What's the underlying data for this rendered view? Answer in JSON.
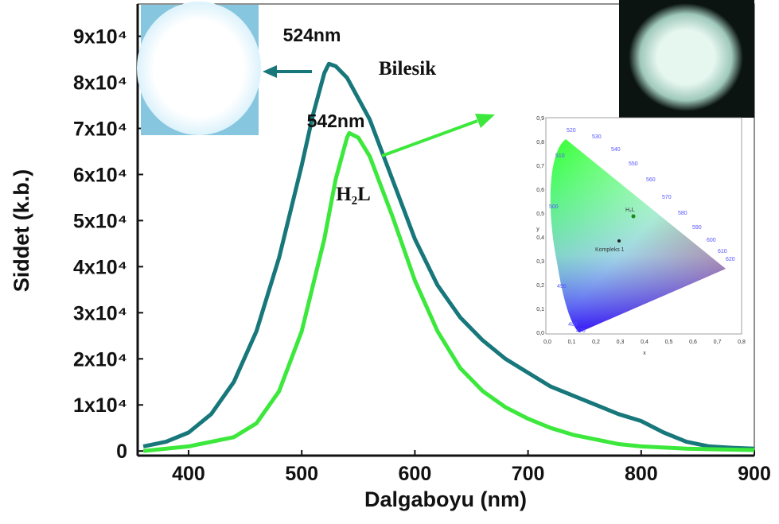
{
  "chart_data": {
    "type": "line",
    "xlabel": "Dalgaboyu (nm)",
    "ylabel": "Siddet (k.b.)",
    "xlim": [
      355,
      900
    ],
    "xticks": [
      400,
      500,
      600,
      700,
      800,
      900
    ],
    "ylim": [
      -1000,
      97000
    ],
    "yticks": [
      0,
      {
        "value": 10000,
        "label": "1x10⁴"
      },
      {
        "value": 20000,
        "label": "2x10⁴"
      },
      {
        "value": 30000,
        "label": "3x10⁴"
      },
      {
        "value": 40000,
        "label": "4x10⁴"
      },
      {
        "value": 50000,
        "label": "5x10⁴"
      },
      {
        "value": 60000,
        "label": "6x10⁴"
      },
      {
        "value": 70000,
        "label": "7x10⁴"
      },
      {
        "value": 80000,
        "label": "8x10⁴"
      },
      {
        "value": 90000,
        "label": "9x10⁴"
      }
    ],
    "series": [
      {
        "name": "Bilesik",
        "color": "#17777a",
        "x": [
          360,
          380,
          400,
          420,
          440,
          460,
          480,
          500,
          510,
          520,
          524,
          530,
          540,
          560,
          580,
          600,
          620,
          640,
          660,
          680,
          700,
          720,
          740,
          760,
          780,
          800,
          820,
          840,
          860,
          880,
          900
        ],
        "values": [
          1000,
          2000,
          4000,
          8000,
          15000,
          26000,
          42000,
          62000,
          73000,
          82000,
          84000,
          83500,
          81000,
          72000,
          59000,
          46000,
          36000,
          29000,
          24000,
          20000,
          17000,
          14000,
          12000,
          10000,
          8000,
          6500,
          4000,
          2000,
          1000,
          700,
          500
        ]
      },
      {
        "name": "H₂L",
        "color": "#3ce83c",
        "x": [
          360,
          400,
          440,
          460,
          480,
          500,
          520,
          530,
          540,
          542,
          550,
          560,
          580,
          600,
          620,
          640,
          660,
          680,
          700,
          720,
          740,
          760,
          780,
          800,
          840,
          900
        ],
        "values": [
          0,
          1000,
          3000,
          6000,
          13000,
          26000,
          46000,
          59000,
          68000,
          69000,
          68000,
          64000,
          51000,
          37000,
          26000,
          18000,
          13000,
          9500,
          7000,
          5000,
          3500,
          2500,
          1500,
          1000,
          500,
          200
        ]
      }
    ],
    "annotations": [
      "524nm",
      "542nm"
    ],
    "inset": {
      "xlabel": "x",
      "ylabel": "y",
      "xticks": [
        "0,0",
        "0,1",
        "0,2",
        "0,3",
        "0,4",
        "0,5",
        "0,6",
        "0,7",
        "0,8"
      ],
      "yticks": [
        "0,0",
        "0,1",
        "0,2",
        "0,3",
        "0,4",
        "0,5",
        "0,6",
        "0,7",
        "0,8",
        "0,9"
      ],
      "wavelengths": [
        "520",
        "530",
        "540",
        "550",
        "560",
        "570",
        "580",
        "590",
        "600",
        "610",
        "620",
        "510",
        "500",
        "490",
        "480",
        "470"
      ],
      "points": [
        "H₂L",
        "Kompleks 1"
      ]
    }
  }
}
